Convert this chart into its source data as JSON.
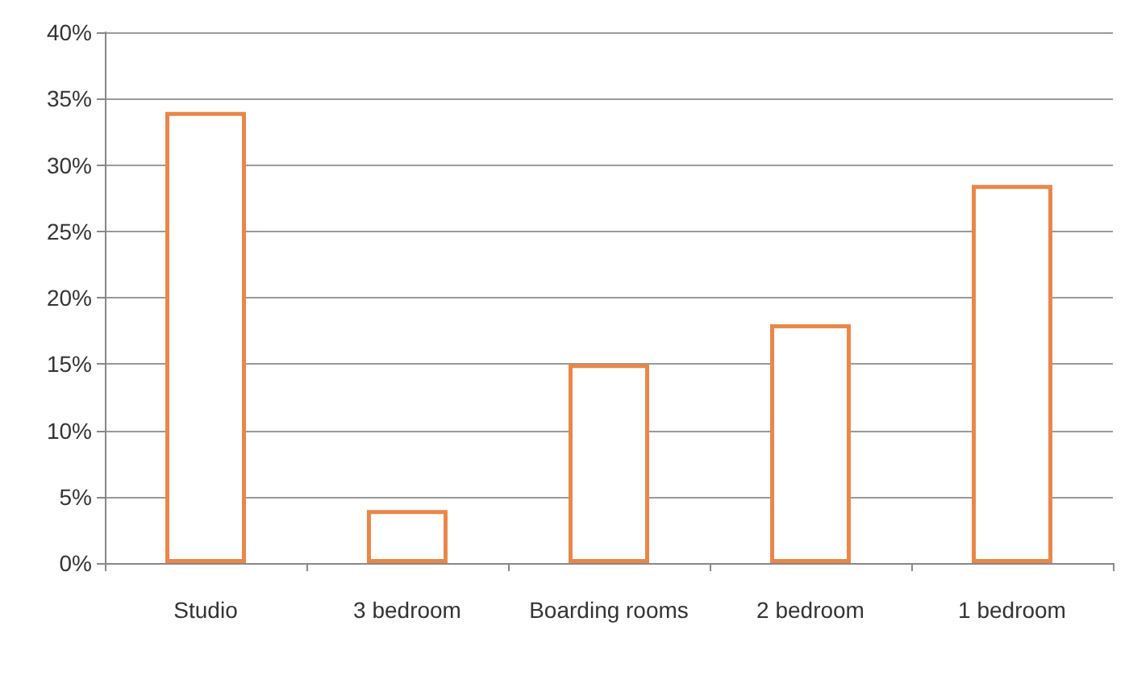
{
  "chart_data": {
    "type": "bar",
    "categories": [
      "Studio",
      "3 bedroom",
      "Boarding rooms",
      "2 bedroom",
      "1 bedroom"
    ],
    "values": [
      34,
      4,
      15,
      18,
      28.5
    ],
    "color": "#e8874a",
    "ylim": [
      0,
      40
    ],
    "yticks": [
      {
        "value": 0,
        "label": "0%"
      },
      {
        "value": 5,
        "label": "5%"
      },
      {
        "value": 10,
        "label": "10%"
      },
      {
        "value": 15,
        "label": "15%"
      },
      {
        "value": 20,
        "label": "20%"
      },
      {
        "value": 25,
        "label": "25%"
      },
      {
        "value": 30,
        "label": "30%"
      },
      {
        "value": 35,
        "label": "35%"
      },
      {
        "value": 40,
        "label": "40%"
      }
    ],
    "grid": "y"
  }
}
